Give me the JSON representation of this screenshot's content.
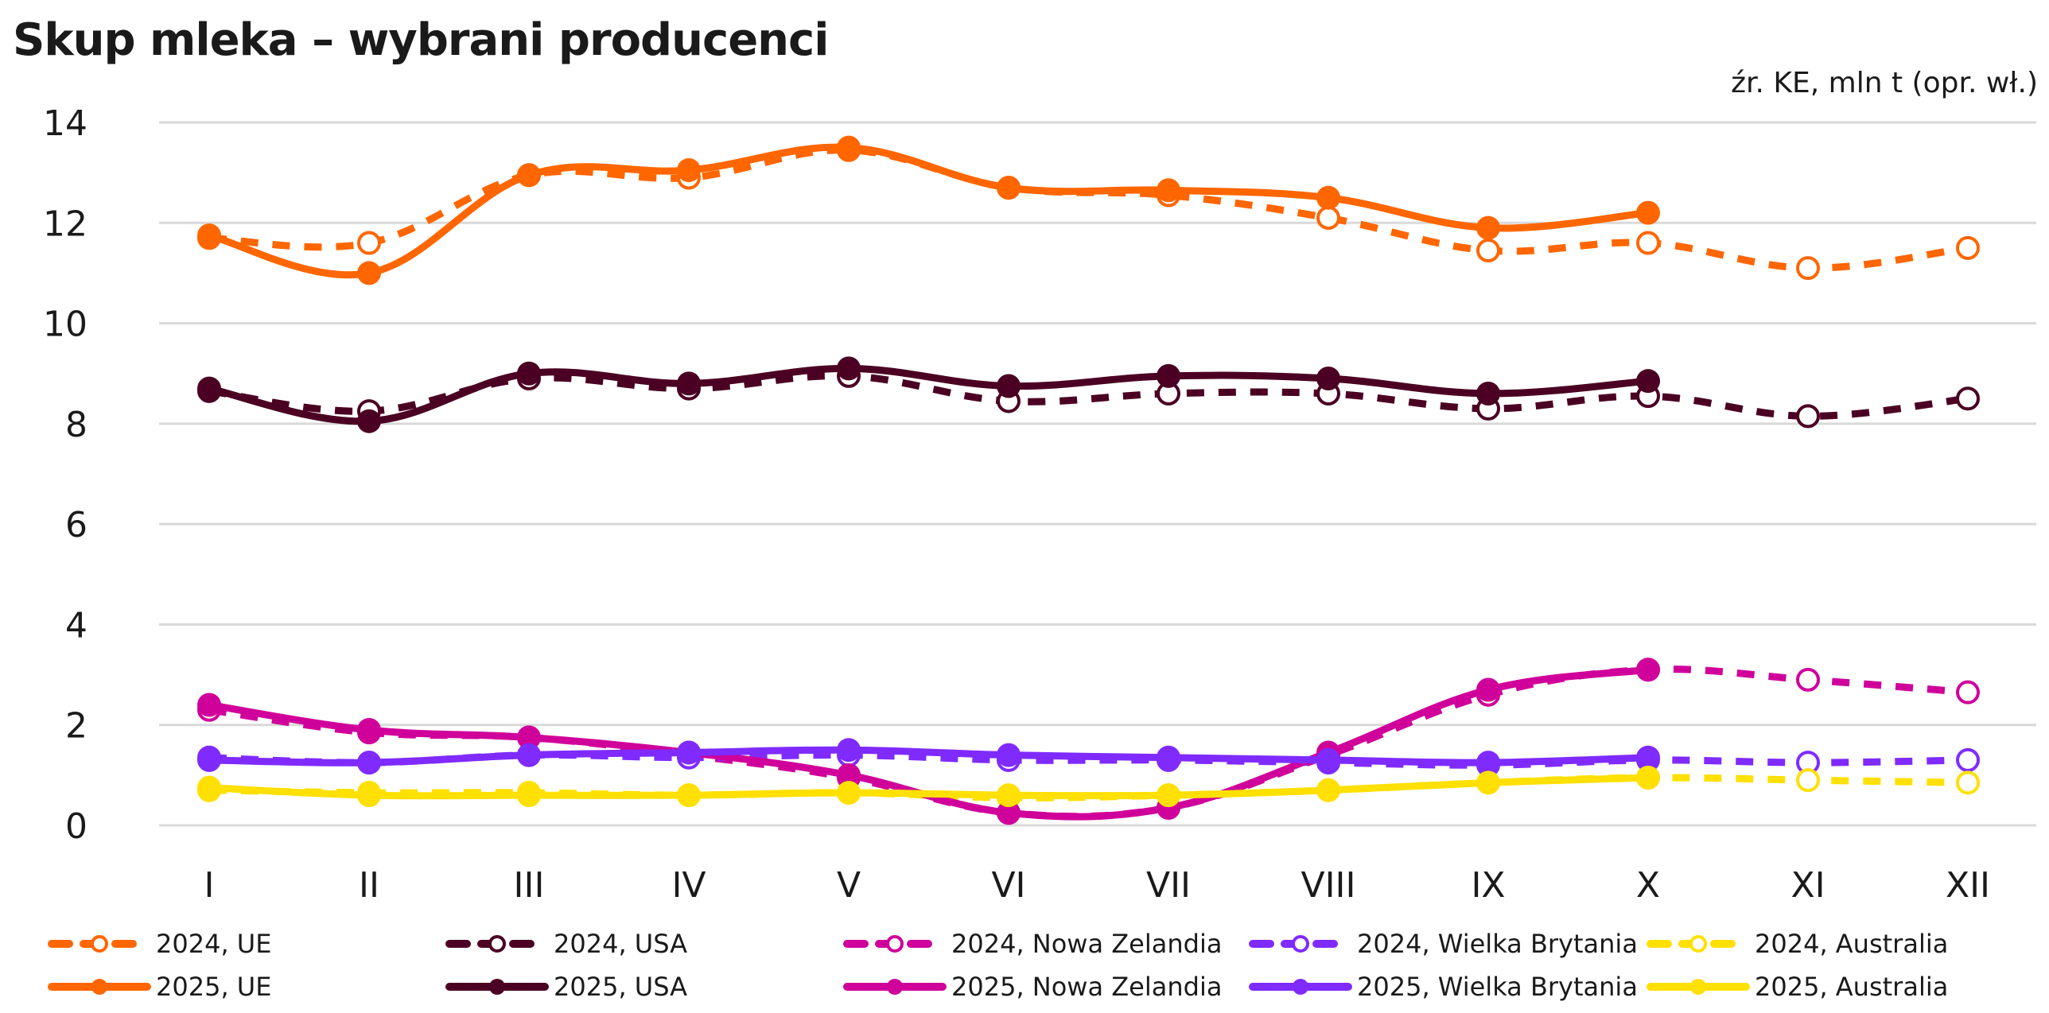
{
  "chart_data": {
    "type": "line",
    "title": "Skup mleka – wybrani producenci",
    "subtitle": "źr. KE, mln t (opr. wł.)",
    "xlabel": "",
    "ylabel": "",
    "ylim": [
      0,
      14
    ],
    "yticks": [
      0,
      2,
      4,
      6,
      8,
      10,
      12,
      14
    ],
    "grid": true,
    "legend_position": "bottom",
    "categories": [
      "I",
      "II",
      "III",
      "IV",
      "V",
      "VI",
      "VII",
      "VIII",
      "IX",
      "X",
      "XI",
      "XII"
    ],
    "series": [
      {
        "name": "2024, UE",
        "color": "#FF6600",
        "style": "dashed",
        "marker": "open",
        "values": [
          11.7,
          11.6,
          12.95,
          12.9,
          13.45,
          12.7,
          12.55,
          12.1,
          11.45,
          11.6,
          11.1,
          11.5
        ]
      },
      {
        "name": "2025, UE",
        "color": "#FF6600",
        "style": "solid",
        "marker": "filled",
        "values": [
          11.75,
          11.0,
          12.95,
          13.05,
          13.5,
          12.7,
          12.65,
          12.5,
          11.9,
          12.2,
          null,
          null
        ]
      },
      {
        "name": "2024, USA",
        "color": "#4B0023",
        "style": "dashed",
        "marker": "open",
        "values": [
          8.65,
          8.25,
          8.9,
          8.7,
          8.95,
          8.45,
          8.6,
          8.6,
          8.3,
          8.55,
          8.15,
          8.5
        ]
      },
      {
        "name": "2025, USA",
        "color": "#4B0023",
        "style": "solid",
        "marker": "filled",
        "values": [
          8.7,
          8.05,
          9.0,
          8.8,
          9.1,
          8.75,
          8.95,
          8.9,
          8.6,
          8.85,
          null,
          null
        ]
      },
      {
        "name": "2024, Nowa Zelandia",
        "color": "#D0009A",
        "style": "dashed",
        "marker": "open",
        "values": [
          2.3,
          1.85,
          1.75,
          1.4,
          0.95,
          0.25,
          0.35,
          1.4,
          2.6,
          3.1,
          2.9,
          2.65
        ]
      },
      {
        "name": "2025, Nowa Zelandia",
        "color": "#D0009A",
        "style": "solid",
        "marker": "filled",
        "values": [
          2.4,
          1.9,
          1.75,
          1.45,
          1.0,
          0.25,
          0.35,
          1.45,
          2.7,
          3.1,
          null,
          null
        ]
      },
      {
        "name": "2024, Wielka Brytania",
        "color": "#7F2BFF",
        "style": "dashed",
        "marker": "open",
        "values": [
          1.35,
          1.25,
          1.4,
          1.35,
          1.4,
          1.3,
          1.3,
          1.25,
          1.2,
          1.3,
          1.25,
          1.3
        ]
      },
      {
        "name": "2025, Wielka Brytania",
        "color": "#7F2BFF",
        "style": "solid",
        "marker": "filled",
        "values": [
          1.3,
          1.25,
          1.4,
          1.45,
          1.5,
          1.4,
          1.35,
          1.3,
          1.25,
          1.35,
          null,
          null
        ]
      },
      {
        "name": "2024, Australia",
        "color": "#FFE000",
        "style": "dashed",
        "marker": "open",
        "values": [
          0.7,
          0.65,
          0.65,
          0.6,
          0.65,
          0.55,
          0.6,
          0.7,
          0.85,
          0.95,
          0.9,
          0.85
        ]
      },
      {
        "name": "2025, Australia",
        "color": "#FFE000",
        "style": "solid",
        "marker": "filled",
        "values": [
          0.75,
          0.6,
          0.6,
          0.6,
          0.65,
          0.6,
          0.6,
          0.7,
          0.85,
          0.95,
          null,
          null
        ]
      }
    ]
  },
  "colors": {
    "grid": "#D9D9D9",
    "text": "#1A1A1A"
  }
}
